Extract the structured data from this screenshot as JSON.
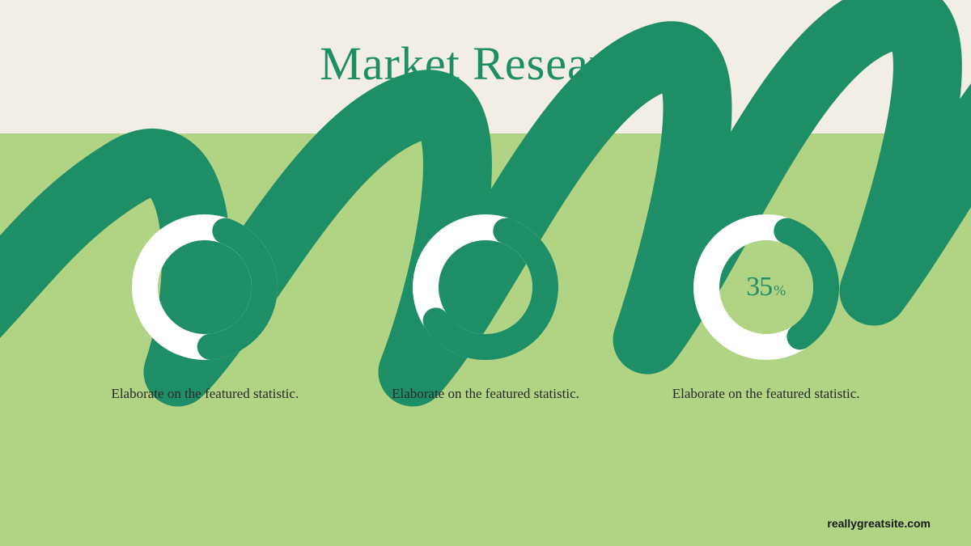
{
  "page": {
    "title": "Market Research",
    "title_color": "#1e8e66",
    "title_fontsize": 58,
    "bg_top_color": "#f2ede5",
    "bg_bottom_color": "#b1d384",
    "scribble_color": "#1e8e66",
    "footer": "reallygreatsite.com"
  },
  "donut_style": {
    "ring_bg": "#ffffff",
    "ring_fill": "#1e8e66",
    "ring_width": 32,
    "outer_radius": 90,
    "start_angle_deg": 20,
    "direction": "clockwise",
    "number_color": "#1e8e66",
    "number_fontsize": 34,
    "percent_fontsize": 18,
    "caption_color": "#2a2a2a",
    "caption_fontsize": 17
  },
  "donuts": [
    {
      "value": 43,
      "unit": "%",
      "caption": "Elaborate on the featured statistic."
    },
    {
      "value": 60,
      "unit": "%",
      "caption": "Elaborate on the featured statistic."
    },
    {
      "value": 35,
      "unit": "%",
      "caption": "Elaborate on the featured statistic."
    }
  ]
}
